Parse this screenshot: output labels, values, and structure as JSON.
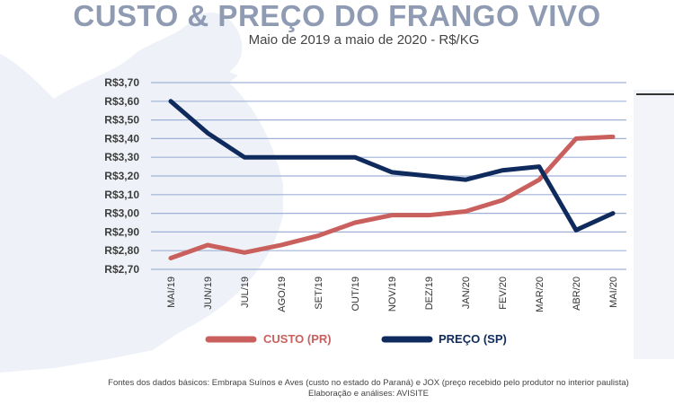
{
  "title": "CUSTO & PREÇO DO FRANGO VIVO",
  "subtitle": "Maio de 2019 a maio de 2020 - R$/KG",
  "source_line1": "Fontes dos dados básicos: Embrapa Suínos e Aves (custo no estado do Paraná) e JOX (preço recebido pelo produtor no interior paulista)",
  "source_line2": "Elaboração e análises: AVISITE",
  "colors": {
    "custo": "#c9605d",
    "preco": "#0f2a5c",
    "grid": "#9fb2d6",
    "background_shape": "#eef1f7"
  },
  "chart_data": {
    "type": "line",
    "title": "CUSTO & PREÇO DO FRANGO VIVO",
    "subtitle": "Maio de 2019 a maio de 2020 - R$/KG",
    "categories": [
      "MAI/19",
      "JUN/19",
      "JUL/19",
      "AGO/19",
      "SET/19",
      "OUT/19",
      "NOV/19",
      "DEZ/19",
      "JAN/20",
      "FEV/20",
      "MAR/20",
      "ABR/20",
      "MAI/20"
    ],
    "y_ticks": [
      "R$3,70",
      "R$3,60",
      "R$3,50",
      "R$3,40",
      "R$3,30",
      "R$3,20",
      "R$3,10",
      "R$3,00",
      "R$2,90",
      "R$2,80",
      "R$2,70"
    ],
    "ylim": [
      2.7,
      3.7
    ],
    "grid": true,
    "legend_position": "bottom",
    "series": [
      {
        "name": "CUSTO (PR)",
        "values": [
          2.76,
          2.83,
          2.79,
          2.83,
          2.88,
          2.95,
          2.99,
          2.99,
          3.01,
          3.07,
          3.18,
          3.4,
          3.41
        ]
      },
      {
        "name": "PREÇO (SP)",
        "values": [
          3.6,
          3.43,
          3.3,
          3.3,
          3.3,
          3.3,
          3.22,
          3.2,
          3.18,
          3.23,
          3.25,
          2.91,
          3.0
        ]
      }
    ]
  }
}
